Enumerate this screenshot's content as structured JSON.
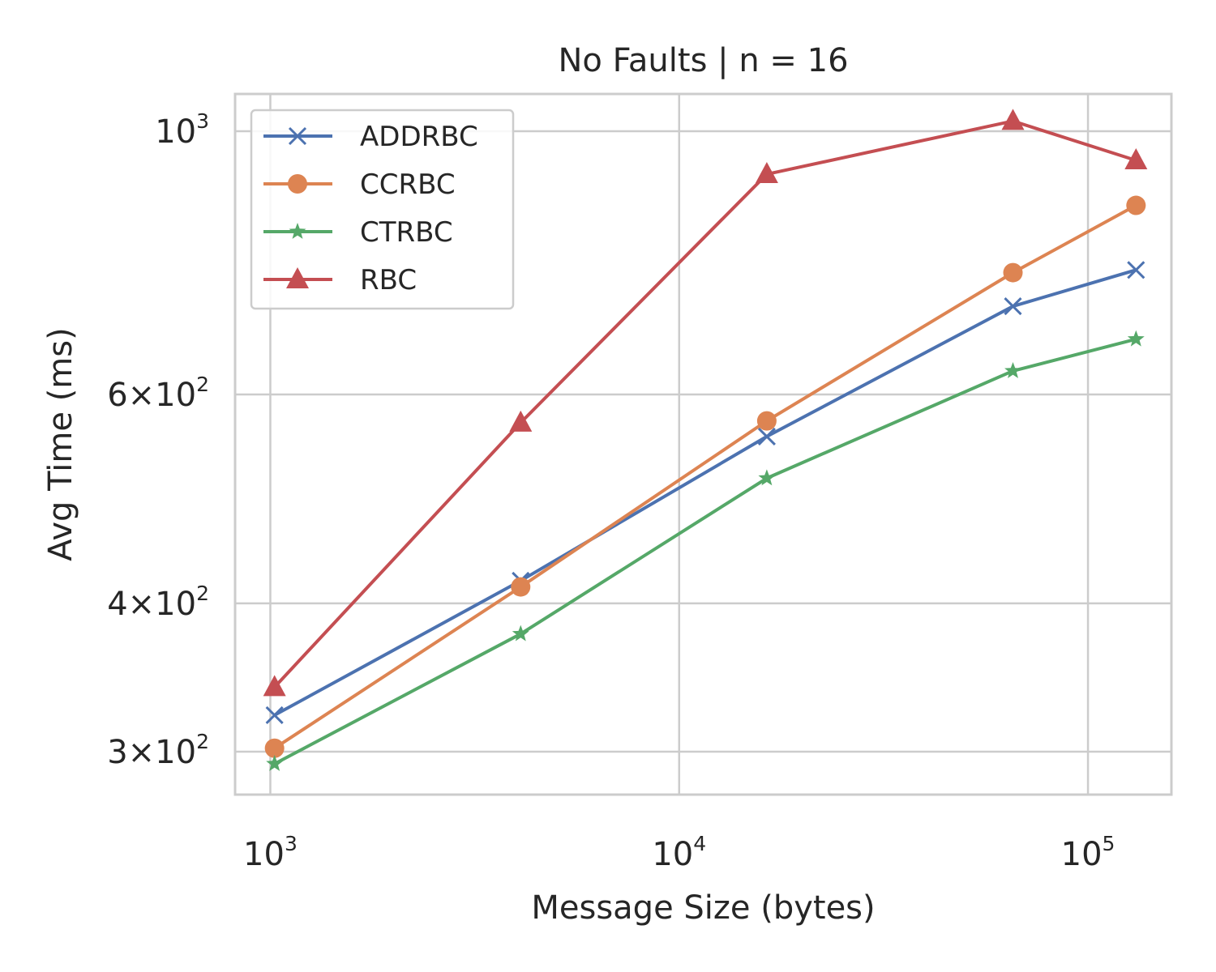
{
  "chart_data": {
    "type": "line",
    "title": "No Faults | n = 16",
    "xlabel": "Message Size (bytes)",
    "ylabel": "Avg Time (ms)",
    "xscale": "log",
    "yscale": "log",
    "xlim": [
      820,
      160000
    ],
    "ylim": [
      276,
      1075
    ],
    "grid": true,
    "legend_position": "top-left",
    "x": [
      1024,
      4096,
      16384,
      65536,
      131072
    ],
    "xticks": [
      {
        "value": 1000,
        "base": "10",
        "exp": "3"
      },
      {
        "value": 10000,
        "base": "10",
        "exp": "4"
      },
      {
        "value": 100000,
        "base": "10",
        "exp": "5"
      }
    ],
    "yticks": [
      {
        "value": 300,
        "base": "3×10",
        "exp": "2"
      },
      {
        "value": 400,
        "base": "4×10",
        "exp": "2"
      },
      {
        "value": 600,
        "base": "6×10",
        "exp": "2"
      },
      {
        "value": 1000,
        "base": "10",
        "exp": "3"
      }
    ],
    "series": [
      {
        "name": "ADDRBC",
        "color": "#4c72b0",
        "marker": "x",
        "values": [
          322,
          418,
          553,
          712,
          764
        ]
      },
      {
        "name": "CCRBC",
        "color": "#dd8452",
        "marker": "circle",
        "values": [
          302,
          413,
          570,
          760,
          866
        ]
      },
      {
        "name": "CTRBC",
        "color": "#55a868",
        "marker": "star",
        "values": [
          293,
          377,
          510,
          628,
          668
        ]
      },
      {
        "name": "RBC",
        "color": "#c44e52",
        "marker": "triangle",
        "values": [
          340,
          568,
          920,
          1020,
          945
        ]
      }
    ]
  }
}
